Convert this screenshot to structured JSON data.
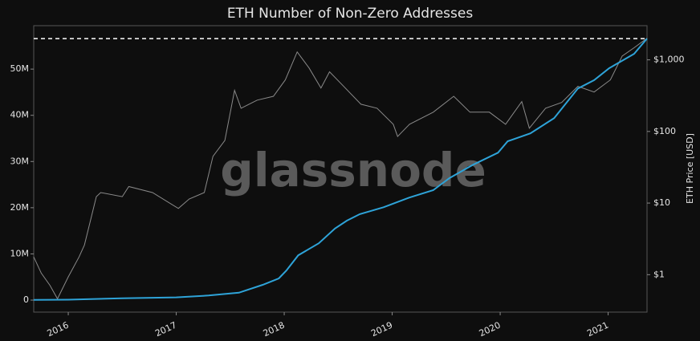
{
  "chart_data": {
    "type": "line",
    "title": "ETH Number of Non-Zero Addresses",
    "watermark": "glassnode",
    "y2label": "ETH Price [USD]",
    "xlim": [
      2015.68,
      2021.36
    ],
    "xticks": [
      2016,
      2017,
      2018,
      2019,
      2020,
      2021
    ],
    "ylim": [
      -2.6,
      59.4
    ],
    "yticks": [
      {
        "value": 0,
        "label": "0"
      },
      {
        "value": 10,
        "label": "10M"
      },
      {
        "value": 20,
        "label": "20M"
      },
      {
        "value": 30,
        "label": "30M"
      },
      {
        "value": 40,
        "label": "40M"
      },
      {
        "value": 50,
        "label": "50M"
      }
    ],
    "y2lim": [
      0.3,
      3000
    ],
    "y2scale": "log",
    "y2ticks": [
      {
        "value": 1,
        "label": "$1"
      },
      {
        "value": 10,
        "label": "$10"
      },
      {
        "value": 100,
        "label": "$100"
      },
      {
        "value": 1000,
        "label": "$1,000"
      }
    ],
    "hline": 56.6,
    "hline_color": "#ffffff",
    "series": [
      {
        "name": "ETH Price [USD]",
        "color": "#8a8a8a",
        "axis": "y2",
        "x": [
          2015.68,
          2015.75,
          2015.83,
          2015.9,
          2016.0,
          2016.1,
          2016.15,
          2016.26,
          2016.3,
          2016.5,
          2016.56,
          2016.78,
          2017.02,
          2017.12,
          2017.26,
          2017.34,
          2017.45,
          2017.54,
          2017.6,
          2017.75,
          2017.9,
          2018.01,
          2018.12,
          2018.23,
          2018.34,
          2018.42,
          2018.53,
          2018.71,
          2018.86,
          2019.01,
          2019.05,
          2019.16,
          2019.38,
          2019.57,
          2019.72,
          2019.9,
          2020.05,
          2020.2,
          2020.27,
          2020.42,
          2020.57,
          2020.72,
          2020.87,
          2021.02,
          2021.13,
          2021.24,
          2021.36
        ],
        "values": [
          1.77,
          1.05,
          0.71,
          0.46,
          0.93,
          1.77,
          2.6,
          12.3,
          14,
          12.3,
          17,
          14,
          8.4,
          11.4,
          14,
          45,
          75,
          375,
          211,
          274,
          310,
          525,
          1290,
          770,
          404,
          680,
          460,
          240,
          211,
          126,
          85,
          126,
          186,
          310,
          186,
          186,
          126,
          261,
          111,
          211,
          254,
          427,
          355,
          525,
          1130,
          1475,
          2000
        ]
      },
      {
        "name": "Non-Zero Addresses",
        "color": "#2ea3d8",
        "x": [
          2015.68,
          2016.0,
          2016.5,
          2017.0,
          2017.3,
          2017.58,
          2017.8,
          2017.95,
          2018.02,
          2018.13,
          2018.32,
          2018.47,
          2018.58,
          2018.7,
          2018.92,
          2019.16,
          2019.38,
          2019.53,
          2019.75,
          2019.98,
          2020.07,
          2020.28,
          2020.5,
          2020.72,
          2020.87,
          2021.01,
          2021.24,
          2021.36
        ],
        "values": [
          0.05,
          0.1,
          0.4,
          0.6,
          1.0,
          1.6,
          3.3,
          4.7,
          6.4,
          9.7,
          12.3,
          15.5,
          17.2,
          18.6,
          20.1,
          22.2,
          23.8,
          26.4,
          29.3,
          31.9,
          34.4,
          36.1,
          39.4,
          45.8,
          47.6,
          50.2,
          53.3,
          56.6
        ]
      }
    ]
  }
}
